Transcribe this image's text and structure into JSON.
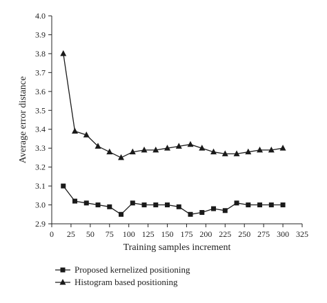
{
  "chart_data": {
    "type": "line",
    "xlabel": "Training samples increment",
    "ylabel": "Average error distance",
    "xlim": [
      0,
      325
    ],
    "ylim": [
      2.9,
      4.0
    ],
    "x_ticks": [
      0,
      25,
      50,
      75,
      100,
      125,
      150,
      175,
      200,
      225,
      250,
      275,
      300,
      325
    ],
    "y_ticks": [
      2.9,
      3.0,
      3.1,
      3.2,
      3.3,
      3.4,
      3.5,
      3.6,
      3.7,
      3.8,
      3.9,
      4.0
    ],
    "grid": false,
    "legend_position": "bottom-left",
    "series": [
      {
        "name": "Proposed kernelized positioning",
        "marker": "square",
        "color": "#1a1a1a",
        "x": [
          15,
          30,
          45,
          60,
          75,
          90,
          105,
          120,
          135,
          150,
          165,
          180,
          195,
          210,
          225,
          240,
          255,
          270,
          285,
          300
        ],
        "values": [
          3.1,
          3.02,
          3.01,
          3.0,
          2.99,
          2.95,
          3.01,
          3.0,
          3.0,
          3.0,
          2.99,
          2.95,
          2.96,
          2.98,
          2.97,
          3.01,
          3.0,
          3.0,
          3.0,
          3.0
        ]
      },
      {
        "name": "Histogram based positioning",
        "marker": "triangle",
        "color": "#1a1a1a",
        "x": [
          15,
          30,
          45,
          60,
          75,
          90,
          105,
          120,
          135,
          150,
          165,
          180,
          195,
          210,
          225,
          240,
          255,
          270,
          285,
          300
        ],
        "values": [
          3.8,
          3.39,
          3.37,
          3.31,
          3.28,
          3.25,
          3.28,
          3.29,
          3.29,
          3.3,
          3.31,
          3.32,
          3.3,
          3.28,
          3.27,
          3.27,
          3.28,
          3.29,
          3.29,
          3.3
        ]
      }
    ]
  }
}
